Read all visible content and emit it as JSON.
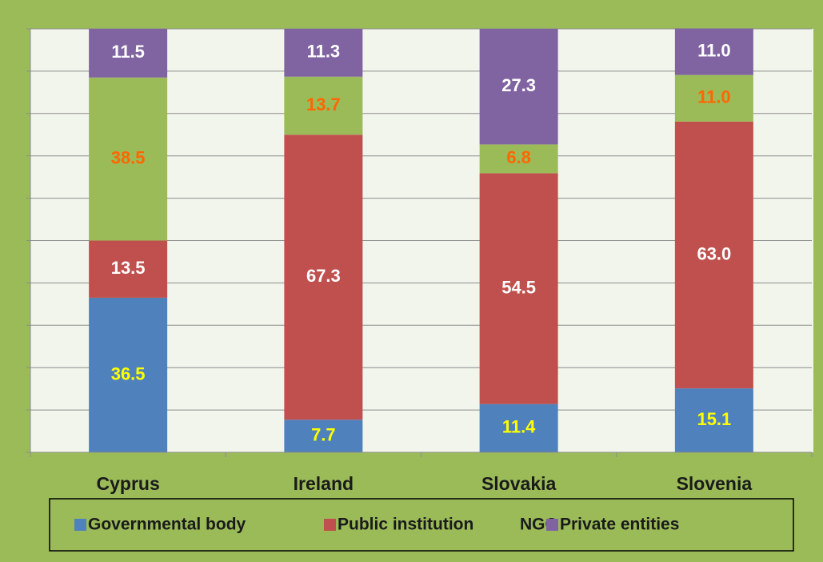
{
  "chart_data": {
    "type": "stacked_bar",
    "categories": [
      "Cyprus",
      "Ireland",
      "Slovakia",
      "Slovenia"
    ],
    "series": [
      {
        "name": "Governmental body",
        "color": "#4f81bd",
        "label_color": "#ffff00",
        "values": [
          36.5,
          7.7,
          11.4,
          15.1
        ]
      },
      {
        "name": "Public institution",
        "color": "#c0504d",
        "label_color": "#ffffff",
        "values": [
          13.5,
          67.3,
          54.5,
          63.0
        ],
        "value_labels": [
          "13.5",
          "67.3",
          "54.5",
          "63.0"
        ]
      },
      {
        "name": "NGO",
        "color": "#9bbb59",
        "label_color": "#ff6600",
        "values": [
          38.5,
          13.7,
          6.8,
          11.0
        ],
        "value_labels": [
          "38.5",
          "13.7",
          "6.8",
          "11.0"
        ]
      },
      {
        "name": "Private entities",
        "color": "#8064a2",
        "label_color": "#ffffff",
        "values": [
          11.5,
          11.3,
          27.3,
          11.0
        ],
        "value_labels": [
          "11.5",
          "11.3",
          "27.3",
          "11.0"
        ]
      }
    ],
    "ylim": [
      0,
      100
    ],
    "yticks": [
      0,
      10,
      20,
      30,
      40,
      50,
      60,
      70,
      80,
      90,
      100
    ],
    "grid": true,
    "legend": "bottom"
  }
}
